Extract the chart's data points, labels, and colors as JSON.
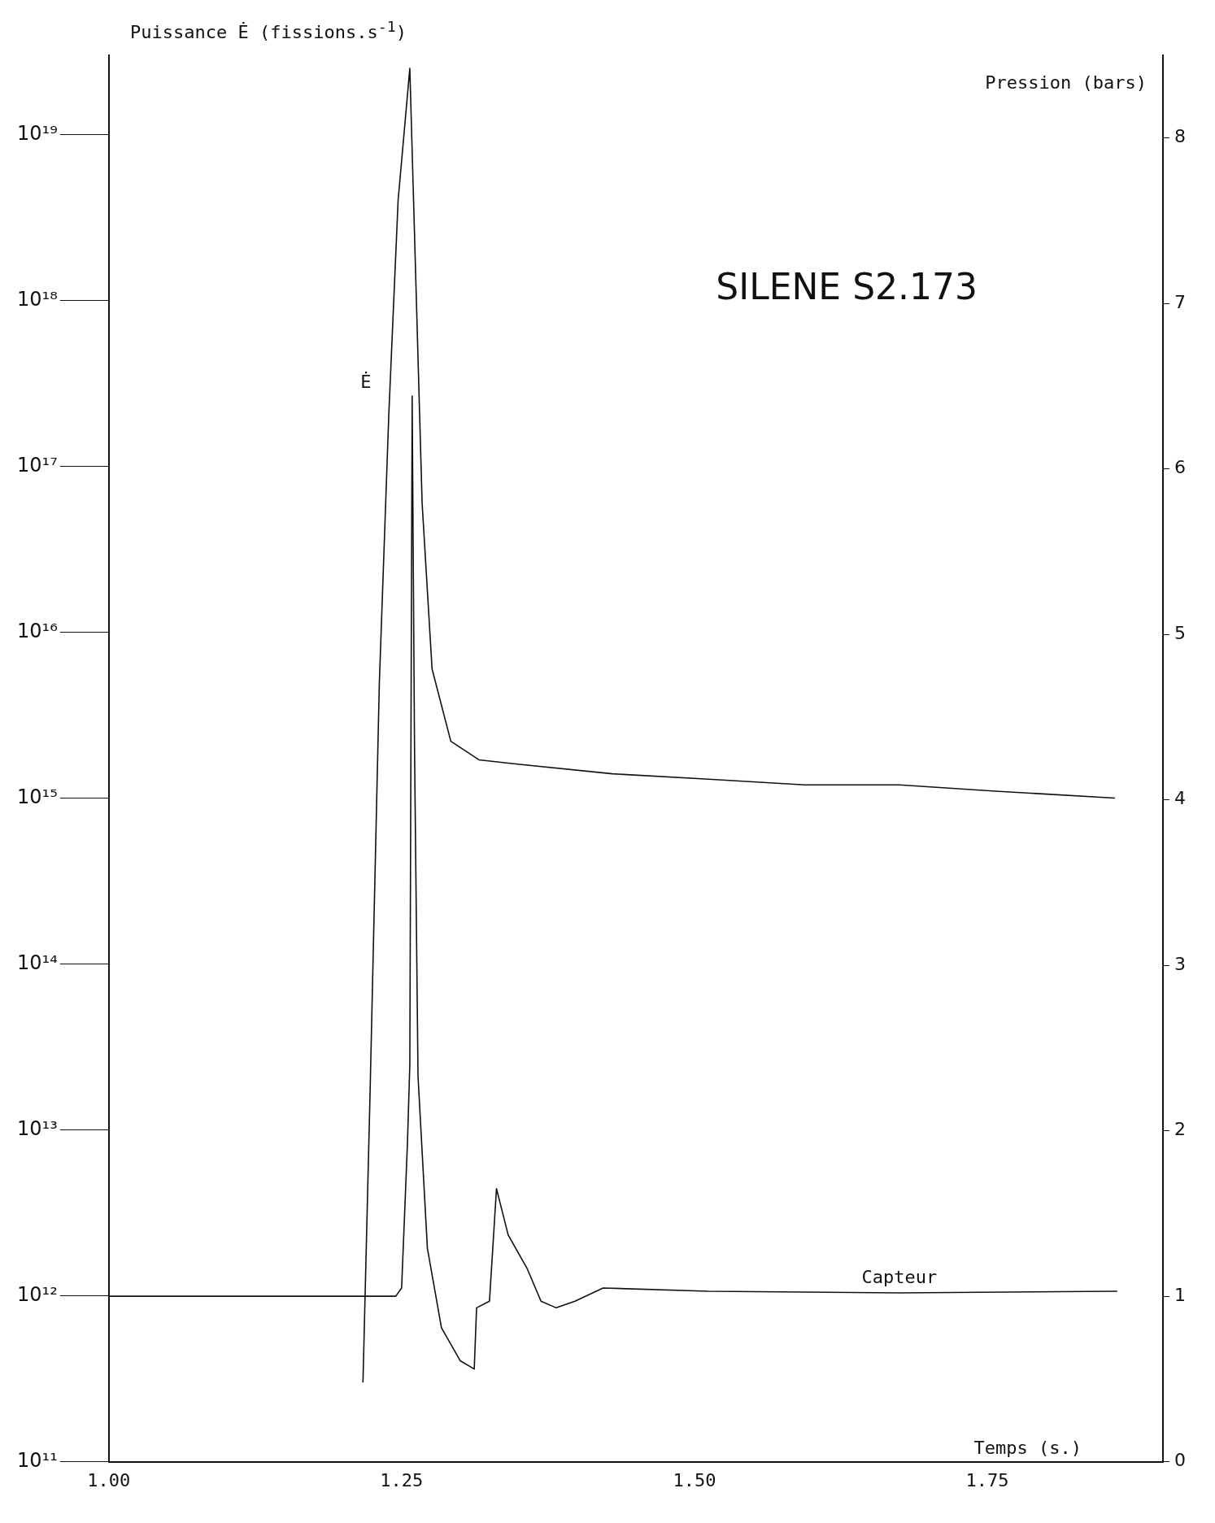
{
  "chart_data": {
    "type": "line",
    "title": "SILENE S2.173",
    "xlabel": "Temps (s.)",
    "ylabel": "Puissance Ė (fissions.s$^{-1}$)",
    "y2label": "Pression (bars)",
    "log": "y",
    "grid": false,
    "legend": false,
    "marker": "none",
    "line_style": "solid",
    "xlim": [
      1.0,
      1.9
    ],
    "xticks": [
      {
        "value": 1.0,
        "label": "1.00"
      },
      1.25,
      {
        "value": 1.5,
        "label": "1.50"
      },
      1.75
    ],
    "ylim": [
      100000000000.0,
      3e+19
    ],
    "yticks": [
      {
        "value": 100000000000.0,
        "label": "10¹¹"
      },
      {
        "value": 1000000000000.0,
        "label": "10¹²"
      },
      {
        "value": 10000000000000.0,
        "label": "10¹³"
      },
      {
        "value": 100000000000000.0,
        "label": "10¹⁴"
      },
      {
        "value": 1000000000000000.0,
        "label": "10¹⁵"
      },
      {
        "value": 1e+16,
        "label": "10¹⁶"
      },
      {
        "value": 1e+17,
        "label": "10¹⁷"
      },
      {
        "value": 1e+18,
        "label": "10¹⁸"
      },
      {
        "value": 1e+19,
        "label": "10¹⁹"
      }
    ],
    "y2lim": [
      0,
      8.5
    ],
    "y2ticks": [
      0,
      1,
      2,
      3,
      4,
      5,
      6,
      7,
      8
    ],
    "series": [
      {
        "name": "Ė",
        "color": "#111111",
        "x": [
          1.217,
          1.223,
          1.231,
          1.239,
          1.247,
          1.257,
          1.263,
          1.2675,
          1.276,
          1.292,
          1.316,
          1.349,
          1.43,
          1.512,
          1.594,
          1.675,
          1.757,
          1.859
        ],
        "values": [
          300000000000.0,
          16000000000000.0,
          5000000000000000.0,
          2e+17,
          4e+18,
          2.5e+19,
          8e+17,
          6e+16,
          6000000000000000.0,
          2200000000000000.0,
          1700000000000000.0,
          1600000000000000.0,
          1400000000000000.0,
          1300000000000000.0,
          1200000000000000.0,
          1200000000000000.0,
          1100000000000000.0,
          1000000000000000.0
        ]
      },
      {
        "name": "Capteur",
        "color": "#111111",
        "axis": "y2",
        "x": [
          1.0,
          1.1,
          1.2,
          1.245,
          1.25,
          1.255,
          1.257,
          1.259,
          1.261,
          1.264,
          1.272,
          1.284,
          1.3,
          1.312,
          1.314,
          1.325,
          1.331,
          1.341,
          1.357,
          1.369,
          1.382,
          1.398,
          1.422,
          1.512,
          1.675,
          1.861
        ],
        "values": [
          1,
          1,
          1,
          1,
          1.05,
          1.93,
          2.4,
          6.44,
          4.33,
          2.33,
          1.29,
          0.81,
          0.61,
          0.56,
          0.93,
          0.97,
          1.65,
          1.37,
          1.17,
          0.97,
          0.93,
          0.97,
          1.05,
          1.03,
          1.02,
          1.03
        ]
      }
    ]
  }
}
